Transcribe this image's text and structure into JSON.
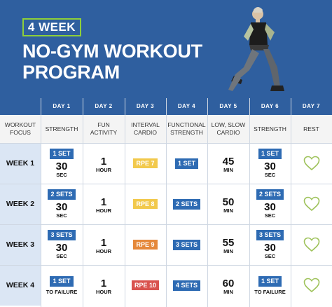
{
  "hero": {
    "badge": "4 WEEK",
    "title_line1": "NO-GYM WORKOUT",
    "title_line2": "PROGRAM"
  },
  "days": [
    "DAY 1",
    "DAY 2",
    "DAY 3",
    "DAY 4",
    "DAY 5",
    "DAY 6",
    "DAY 7"
  ],
  "focus": {
    "label_line1": "WORKOUT",
    "label_line2": "FOCUS",
    "items": [
      [
        "STRENGTH"
      ],
      [
        "FUN",
        "ACTIVITY"
      ],
      [
        "INTERVAL",
        "CARDIO"
      ],
      [
        "FUNCTIONAL",
        "STRENGTH"
      ],
      [
        "LOW, SLOW",
        "CARDIO"
      ],
      [
        "STRENGTH"
      ],
      [
        "REST"
      ]
    ]
  },
  "colors": {
    "header_blue": "#2f5f9f",
    "chip_blue": "#2e6bb3",
    "week_bg": "#dbe6f4",
    "rpe_yellow": "#f2c94c",
    "rpe_orange": "#e5883a",
    "rpe_red": "#d9534f",
    "heart_green": "#9ec25a",
    "badge_green": "#8ecf3a"
  },
  "weeks": [
    {
      "label": "WEEK 1",
      "d1": {
        "chip": "1 SET",
        "big": "30",
        "unit": "SEC"
      },
      "d2": {
        "big": "1",
        "unit": "HOUR"
      },
      "d3": {
        "rpe": "RPE 7",
        "color": "#f2c94c"
      },
      "d4": {
        "chip": "1 SET"
      },
      "d5": {
        "big": "45",
        "unit": "MIN"
      },
      "d6": {
        "chip": "1 SET",
        "big": "30",
        "unit": "SEC"
      },
      "d7": {
        "icon": "heart-icon"
      }
    },
    {
      "label": "WEEK 2",
      "d1": {
        "chip": "2 SETS",
        "big": "30",
        "unit": "SEC"
      },
      "d2": {
        "big": "1",
        "unit": "HOUR"
      },
      "d3": {
        "rpe": "RPE 8",
        "color": "#f2c94c"
      },
      "d4": {
        "chip": "2 SETS"
      },
      "d5": {
        "big": "50",
        "unit": "MIN"
      },
      "d6": {
        "chip": "2 SETS",
        "big": "30",
        "unit": "SEC"
      },
      "d7": {
        "icon": "heart-icon"
      }
    },
    {
      "label": "WEEK 3",
      "d1": {
        "chip": "3 SETS",
        "big": "30",
        "unit": "SEC"
      },
      "d2": {
        "big": "1",
        "unit": "HOUR"
      },
      "d3": {
        "rpe": "RPE 9",
        "color": "#e5883a"
      },
      "d4": {
        "chip": "3 SETS"
      },
      "d5": {
        "big": "55",
        "unit": "MIN"
      },
      "d6": {
        "chip": "3 SETS",
        "big": "30",
        "unit": "SEC"
      },
      "d7": {
        "icon": "heart-icon"
      }
    },
    {
      "label": "WEEK 4",
      "d1": {
        "chip": "1 SET",
        "fail": "TO FAILURE"
      },
      "d2": {
        "big": "1",
        "unit": "HOUR"
      },
      "d3": {
        "rpe": "RPE 10",
        "color": "#d9534f"
      },
      "d4": {
        "chip": "4 SETS"
      },
      "d5": {
        "big": "60",
        "unit": "MIN"
      },
      "d6": {
        "chip": "1 SET",
        "fail": "TO FAILURE"
      },
      "d7": {
        "icon": "heart-icon"
      }
    }
  ]
}
